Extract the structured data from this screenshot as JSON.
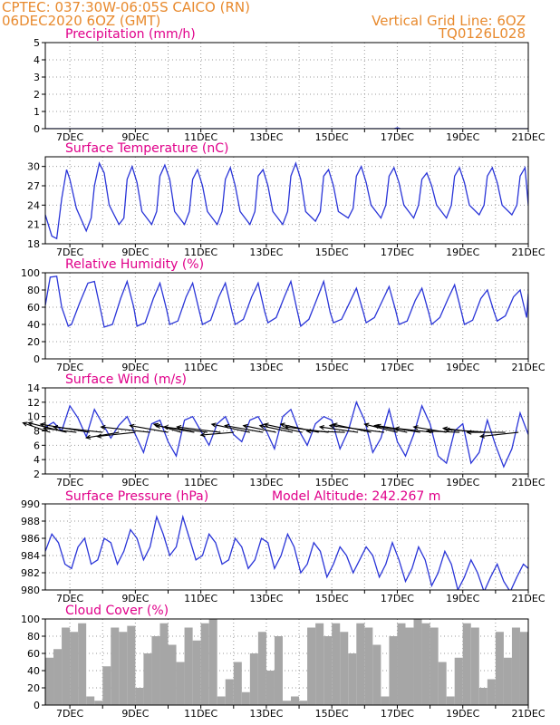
{
  "header": {
    "line1_left": "CPTEC:   037:30W-06:05S   CAICO (RN)",
    "line2_left": "06DEC2020 6OZ (GMT)",
    "line1_right": "Vertical Grid Line: 6OZ",
    "line2_right": "TQ0126L028"
  },
  "x_tick_labels": [
    "7DEC",
    "9DEC",
    "11DEC",
    "13DEC",
    "15DEC",
    "17DEC",
    "19DEC",
    "21DEC"
  ],
  "colors": {
    "header": "#e88a2e",
    "panel_title": "#e0008a",
    "series": "#2a35d8",
    "cloud": "#a6a6a6"
  },
  "panels": {
    "precipitation": {
      "title": "Precipitation (mm/h)"
    },
    "temperature": {
      "title": "Surface Temperature (nC)"
    },
    "humidity": {
      "title": "Relative Humidity (%)"
    },
    "wind": {
      "title": "Surface Wind (m/s)"
    },
    "pressure": {
      "title": "Surface Pressure (hPa)",
      "subtitle": "Model Altitude: 242.267 m"
    },
    "cloud": {
      "title": "Cloud Cover (%)"
    }
  },
  "chart_data": [
    {
      "type": "line",
      "title": "Precipitation (mm/h)",
      "ylim": [
        0,
        5
      ],
      "yticks": [
        0,
        1,
        2,
        3,
        4,
        5
      ],
      "xlim": [
        6.25,
        21
      ],
      "x_unit": "day of December 2020",
      "x": [
        6.25,
        10,
        14,
        16.9,
        17.0,
        17.1,
        21
      ],
      "values": [
        0,
        0,
        0,
        0,
        0.05,
        0,
        0
      ],
      "grid": true
    },
    {
      "type": "line",
      "title": "Surface Temperature (nC)",
      "ylim": [
        18,
        31.5
      ],
      "yticks": [
        18,
        21,
        24,
        27,
        30
      ],
      "xlim": [
        6.25,
        21
      ],
      "x_unit": "day of December 2020",
      "x": [
        6.25,
        6.45,
        6.6,
        6.75,
        6.9,
        7.0,
        7.2,
        7.5,
        7.65,
        7.75,
        7.9,
        8.05,
        8.2,
        8.5,
        8.65,
        8.75,
        8.9,
        9.05,
        9.2,
        9.5,
        9.65,
        9.75,
        9.9,
        10.05,
        10.2,
        10.5,
        10.65,
        10.75,
        10.9,
        11.05,
        11.2,
        11.5,
        11.65,
        11.75,
        11.9,
        12.05,
        12.2,
        12.5,
        12.65,
        12.75,
        12.9,
        13.05,
        13.2,
        13.5,
        13.65,
        13.75,
        13.9,
        14.05,
        14.2,
        14.5,
        14.65,
        14.75,
        14.9,
        15.05,
        15.2,
        15.5,
        15.65,
        15.75,
        15.9,
        16.05,
        16.2,
        16.5,
        16.65,
        16.75,
        16.9,
        17.05,
        17.2,
        17.5,
        17.65,
        17.75,
        17.9,
        18.05,
        18.2,
        18.5,
        18.65,
        18.75,
        18.9,
        19.05,
        19.2,
        19.5,
        19.65,
        19.75,
        19.9,
        20.05,
        20.2,
        20.5,
        20.65,
        20.75,
        20.9,
        21.0
      ],
      "values": [
        22.5,
        19.2,
        18.8,
        25,
        29.5,
        28,
        23.5,
        20,
        22,
        27,
        30.5,
        29,
        24,
        21,
        22,
        28,
        30,
        27.5,
        23,
        21,
        23,
        28.5,
        30.2,
        28,
        23,
        21,
        23,
        28,
        29.5,
        27,
        23,
        21,
        23,
        28,
        29.8,
        27,
        23,
        21,
        23,
        28.5,
        29.5,
        27,
        23,
        21,
        23,
        28.5,
        30.5,
        28,
        23,
        21.5,
        23,
        28.5,
        29.5,
        27,
        23,
        22,
        23.5,
        28.5,
        30,
        27.5,
        24,
        22,
        24,
        28.5,
        29.8,
        27.5,
        24,
        22,
        24,
        28,
        29,
        27,
        24,
        22,
        24,
        28.5,
        29.8,
        27.5,
        24,
        22.5,
        24,
        28.5,
        29.8,
        27.5,
        24,
        22.5,
        24,
        28.5,
        29.8,
        24
      ]
    },
    {
      "type": "line",
      "title": "Relative Humidity (%)",
      "ylim": [
        0,
        100
      ],
      "yticks": [
        0,
        20,
        40,
        60,
        80,
        100
      ],
      "xlim": [
        6.25,
        21
      ],
      "x_unit": "day of December 2020",
      "x": [
        6.25,
        6.4,
        6.6,
        6.75,
        6.95,
        7.05,
        7.3,
        7.55,
        7.75,
        7.95,
        8.05,
        8.3,
        8.55,
        8.75,
        8.95,
        9.05,
        9.3,
        9.55,
        9.75,
        9.95,
        10.05,
        10.3,
        10.55,
        10.75,
        10.95,
        11.05,
        11.3,
        11.55,
        11.75,
        11.95,
        12.05,
        12.3,
        12.55,
        12.75,
        12.95,
        13.05,
        13.3,
        13.55,
        13.75,
        13.95,
        14.05,
        14.3,
        14.55,
        14.75,
        14.95,
        15.05,
        15.3,
        15.55,
        15.75,
        15.95,
        16.05,
        16.3,
        16.55,
        16.75,
        16.95,
        17.05,
        17.3,
        17.55,
        17.75,
        17.95,
        18.05,
        18.3,
        18.55,
        18.75,
        18.95,
        19.05,
        19.3,
        19.55,
        19.75,
        19.95,
        20.05,
        20.3,
        20.55,
        20.75,
        20.95,
        21.0
      ],
      "values": [
        62,
        95,
        96,
        60,
        38,
        40,
        65,
        88,
        90,
        55,
        37,
        40,
        70,
        90,
        60,
        38,
        42,
        70,
        88,
        58,
        40,
        44,
        72,
        88,
        56,
        40,
        45,
        72,
        88,
        55,
        40,
        46,
        72,
        88,
        55,
        42,
        48,
        72,
        90,
        55,
        38,
        46,
        70,
        90,
        54,
        42,
        46,
        66,
        82,
        56,
        42,
        48,
        68,
        84,
        56,
        40,
        44,
        68,
        82,
        55,
        40,
        48,
        70,
        86,
        56,
        40,
        45,
        70,
        80,
        55,
        44,
        50,
        72,
        80,
        48,
        76
      ]
    },
    {
      "type": "line",
      "title": "Surface Wind (m/s)",
      "ylim": [
        2,
        14
      ],
      "yticks": [
        2,
        4,
        6,
        8,
        10,
        12,
        14
      ],
      "xlim": [
        6.25,
        21
      ],
      "x_unit": "day of December 2020",
      "x": [
        6.25,
        6.5,
        6.75,
        7.0,
        7.25,
        7.5,
        7.75,
        8.0,
        8.25,
        8.5,
        8.75,
        9.0,
        9.25,
        9.5,
        9.75,
        10.0,
        10.25,
        10.5,
        10.75,
        11.0,
        11.25,
        11.5,
        11.75,
        12.0,
        12.25,
        12.5,
        12.75,
        13.0,
        13.25,
        13.5,
        13.75,
        14.0,
        14.25,
        14.5,
        14.75,
        15.0,
        15.25,
        15.5,
        15.75,
        16.0,
        16.25,
        16.5,
        16.75,
        17.0,
        17.25,
        17.5,
        17.75,
        18.0,
        18.25,
        18.5,
        18.75,
        19.0,
        19.25,
        19.5,
        19.75,
        20.0,
        20.25,
        20.5,
        20.75,
        21.0
      ],
      "values": [
        8.5,
        9.2,
        8.0,
        11.5,
        9.8,
        7.2,
        11.0,
        9.0,
        7.0,
        8.8,
        10.0,
        7.5,
        5.0,
        9.0,
        9.5,
        6.5,
        4.5,
        9.5,
        10.0,
        8.0,
        6.0,
        9.0,
        10.0,
        7.5,
        6.5,
        9.5,
        10.0,
        8.0,
        5.5,
        10.0,
        11.0,
        8.0,
        6.0,
        9.0,
        10.0,
        9.5,
        5.5,
        8.0,
        12.0,
        9.5,
        5.0,
        7.0,
        11.0,
        6.5,
        4.5,
        7.5,
        11.5,
        9.0,
        4.5,
        3.5,
        8.0,
        9.0,
        3.5,
        5.0,
        9.5,
        6.0,
        3.0,
        5.5,
        10.5,
        7.5
      ],
      "vectors": [
        {
          "day": 6.4,
          "dx": -0.25,
          "dy": 0.35
        },
        {
          "day": 6.9,
          "dx": -0.35,
          "dy": 0.35
        },
        {
          "day": 7.2,
          "dx": -0.3,
          "dy": 0.15
        },
        {
          "day": 7.6,
          "dx": -0.45,
          "dy": 0.3
        },
        {
          "day": 8.0,
          "dx": -0.45,
          "dy": 0.2
        },
        {
          "day": 8.5,
          "dx": -0.3,
          "dy": -0.2
        },
        {
          "day": 9.0,
          "dx": -0.35,
          "dy": -0.15
        },
        {
          "day": 9.45,
          "dx": -0.45,
          "dy": 0.2
        },
        {
          "day": 10.0,
          "dx": -0.35,
          "dy": 0.25
        },
        {
          "day": 10.4,
          "dx": -0.25,
          "dy": 0.3
        },
        {
          "day": 10.8,
          "dx": -0.35,
          "dy": 0.25
        },
        {
          "day": 11.2,
          "dx": -0.4,
          "dy": 0.2
        },
        {
          "day": 11.6,
          "dx": -0.4,
          "dy": 0.2
        },
        {
          "day": 12.0,
          "dx": -0.3,
          "dy": -0.1
        },
        {
          "day": 12.5,
          "dx": -0.35,
          "dy": 0.3
        },
        {
          "day": 12.9,
          "dx": -0.35,
          "dy": 0.25
        },
        {
          "day": 13.3,
          "dx": -0.3,
          "dy": 0.25
        },
        {
          "day": 13.8,
          "dx": -0.3,
          "dy": 0.25
        },
        {
          "day": 14.1,
          "dx": -0.35,
          "dy": 0.3
        },
        {
          "day": 14.6,
          "dx": -0.35,
          "dy": 0.3
        },
        {
          "day": 14.9,
          "dx": -0.4,
          "dy": 0.2
        },
        {
          "day": 15.4,
          "dx": -0.35,
          "dy": 0.05
        },
        {
          "day": 15.8,
          "dx": -0.35,
          "dy": 0.2
        },
        {
          "day": 16.2,
          "dx": -0.35,
          "dy": 0.3
        },
        {
          "day": 16.6,
          "dx": -0.5,
          "dy": 0.25
        },
        {
          "day": 17.0,
          "dx": -0.3,
          "dy": 0.3
        },
        {
          "day": 17.3,
          "dx": -0.3,
          "dy": 0.25
        },
        {
          "day": 17.7,
          "dx": -0.4,
          "dy": 0.25
        },
        {
          "day": 18.1,
          "dx": -0.35,
          "dy": 0.15
        },
        {
          "day": 18.5,
          "dx": -0.3,
          "dy": 0.2
        },
        {
          "day": 18.9,
          "dx": -0.3,
          "dy": 0.05
        },
        {
          "day": 19.4,
          "dx": -0.3,
          "dy": 0.15
        },
        {
          "day": 19.8,
          "dx": -0.4,
          "dy": 0.1
        },
        {
          "day": 20.3,
          "dx": -0.35,
          "dy": 0.0
        },
        {
          "day": 20.7,
          "dx": -0.35,
          "dy": -0.15
        }
      ]
    },
    {
      "type": "line",
      "title": "Surface Pressure (hPa)",
      "ylim": [
        980,
        990
      ],
      "yticks": [
        980,
        982,
        984,
        986,
        988,
        990
      ],
      "xlim": [
        6.25,
        21
      ],
      "x_unit": "day of December 2020",
      "x": [
        6.25,
        6.45,
        6.65,
        6.85,
        7.05,
        7.25,
        7.45,
        7.65,
        7.85,
        8.05,
        8.25,
        8.45,
        8.65,
        8.85,
        9.05,
        9.25,
        9.45,
        9.65,
        9.85,
        10.05,
        10.25,
        10.45,
        10.65,
        10.85,
        11.05,
        11.25,
        11.45,
        11.65,
        11.85,
        12.05,
        12.25,
        12.45,
        12.65,
        12.85,
        13.05,
        13.25,
        13.45,
        13.65,
        13.85,
        14.05,
        14.25,
        14.45,
        14.65,
        14.85,
        15.05,
        15.25,
        15.45,
        15.65,
        15.85,
        16.05,
        16.25,
        16.45,
        16.65,
        16.85,
        17.05,
        17.25,
        17.45,
        17.65,
        17.85,
        18.05,
        18.25,
        18.45,
        18.65,
        18.85,
        19.05,
        19.25,
        19.45,
        19.65,
        19.85,
        20.05,
        20.25,
        20.45,
        20.65,
        20.85,
        21.0
      ],
      "values": [
        984.5,
        986.5,
        985.5,
        983,
        982.5,
        985,
        986,
        983,
        983.5,
        986,
        985.5,
        983,
        984.5,
        987,
        986,
        983.5,
        985,
        988.5,
        986.5,
        984,
        985,
        988.5,
        986,
        983.5,
        984,
        986.5,
        985.5,
        983,
        983.5,
        986,
        985,
        982.5,
        983.5,
        986,
        985.5,
        982.5,
        984,
        986.5,
        985,
        982,
        983,
        985.5,
        984.5,
        981.5,
        983,
        985,
        984,
        982,
        983.5,
        985,
        984,
        981.5,
        983,
        985.5,
        983.5,
        981,
        982.5,
        985,
        983.5,
        980.5,
        982,
        984.5,
        983,
        980,
        981.5,
        983.5,
        982,
        979.8,
        981.5,
        983,
        981,
        979.8,
        981.5,
        983,
        982.5
      ]
    },
    {
      "type": "bar",
      "title": "Cloud Cover (%)",
      "ylim": [
        0,
        100
      ],
      "yticks": [
        0,
        20,
        40,
        60,
        80,
        100
      ],
      "xlim": [
        6.25,
        21
      ],
      "x_unit": "day of December 2020",
      "x": [
        6.25,
        6.5,
        6.75,
        7.0,
        7.25,
        7.5,
        7.75,
        8.0,
        8.25,
        8.5,
        8.75,
        9.0,
        9.25,
        9.5,
        9.75,
        10.0,
        10.25,
        10.5,
        10.75,
        11.0,
        11.25,
        11.5,
        11.75,
        12.0,
        12.25,
        12.5,
        12.75,
        13.0,
        13.25,
        13.5,
        13.75,
        14.0,
        14.25,
        14.5,
        14.75,
        15.0,
        15.25,
        15.5,
        15.75,
        16.0,
        16.25,
        16.5,
        16.75,
        17.0,
        17.25,
        17.5,
        17.75,
        18.0,
        18.25,
        18.5,
        18.75,
        19.0,
        19.25,
        19.5,
        19.75,
        20.0,
        20.25,
        20.5,
        20.75
      ],
      "values": [
        55,
        65,
        90,
        85,
        95,
        10,
        5,
        45,
        90,
        85,
        92,
        20,
        60,
        80,
        95,
        70,
        50,
        90,
        75,
        95,
        100,
        10,
        30,
        50,
        15,
        60,
        85,
        40,
        80,
        5,
        10,
        5,
        90,
        95,
        80,
        95,
        85,
        60,
        95,
        90,
        70,
        10,
        80,
        95,
        90,
        100,
        95,
        90,
        50,
        10,
        55,
        95,
        90,
        20,
        30,
        85,
        55,
        90,
        85
      ]
    }
  ]
}
